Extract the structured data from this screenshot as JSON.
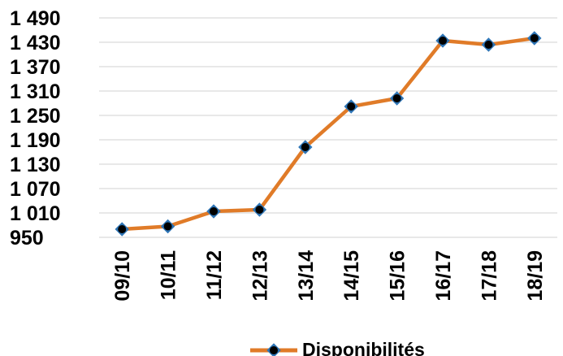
{
  "chart_data": {
    "type": "line",
    "categories": [
      "09/10",
      "10/11",
      "11/12",
      "12/13",
      "13/14",
      "14/15",
      "15/16",
      "16/17",
      "17/18",
      "18/19"
    ],
    "series": [
      {
        "name": "Disponibilités",
        "values": [
          970,
          977,
          1014,
          1018,
          1172,
          1272,
          1292,
          1434,
          1424,
          1440
        ],
        "color": "#E07B28",
        "marker_color": "#000000",
        "marker_edge_color": "#2E75B6"
      }
    ],
    "yticks": [
      "1 490",
      "1 430",
      "1 370",
      "1 310",
      "1 250",
      "1 190",
      "1 130",
      "1 070",
      "1 010",
      "950"
    ],
    "ytick_values": [
      1490,
      1430,
      1370,
      1310,
      1250,
      1190,
      1130,
      1070,
      1010,
      950
    ],
    "ylim": [
      950,
      1490
    ],
    "grid": true,
    "grid_color": "#D9D9D9",
    "legend_position": "bottom"
  }
}
